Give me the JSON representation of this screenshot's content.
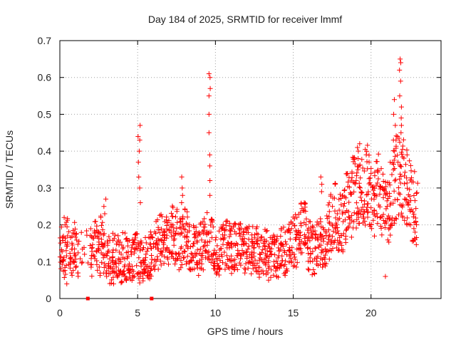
{
  "chart_data": {
    "type": "scatter",
    "title": "Day 184 of 2025, SRMTID for receiver lmmf",
    "xlabel": "GPS time / hours",
    "ylabel": "SRMTID / TECUs",
    "xlim": [
      0,
      24.5
    ],
    "ylim": [
      0,
      0.7
    ],
    "xticks": [
      0,
      5,
      10,
      15,
      20
    ],
    "xtick_labels": [
      "0",
      "5",
      "10",
      "15",
      "20"
    ],
    "yticks": [
      0,
      0.1,
      0.2,
      0.3,
      0.4,
      0.5,
      0.6,
      0.7
    ],
    "ytick_labels": [
      "0",
      "0.1",
      "0.2",
      "0.3",
      "0.4",
      "0.5",
      "0.6",
      "0.7"
    ],
    "grid": true,
    "marker": "+",
    "color": "#ff0000",
    "series": [
      {
        "name": "SRMTID",
        "x": [
          0.0,
          0.2,
          0.4,
          0.6,
          0.8,
          1.0,
          1.2,
          2.0,
          2.2,
          2.4,
          2.6,
          2.8,
          3.0,
          3.2,
          3.4,
          3.6,
          3.8,
          4.0,
          4.2,
          4.4,
          4.6,
          4.8,
          5.0,
          5.2,
          5.4,
          5.6,
          5.8,
          6.0,
          6.2,
          6.4,
          6.6,
          6.8,
          7.0,
          7.2,
          7.4,
          7.6,
          7.8,
          8.0,
          8.2,
          8.4,
          8.6,
          8.8,
          9.0,
          9.2,
          9.4,
          9.6,
          9.8,
          10.0,
          10.2,
          10.4,
          10.6,
          10.8,
          11.0,
          11.2,
          11.4,
          11.6,
          11.8,
          12.0,
          12.2,
          12.4,
          12.6,
          12.8,
          13.0,
          13.2,
          13.4,
          13.6,
          13.8,
          14.0,
          14.2,
          14.4,
          14.6,
          14.8,
          15.0,
          15.2,
          15.4,
          15.6,
          15.8,
          16.0,
          16.2,
          16.4,
          16.6,
          16.8,
          17.0,
          17.2,
          17.4,
          17.6,
          17.8,
          18.0,
          18.2,
          18.4,
          18.6,
          18.8,
          19.0,
          19.2,
          19.4,
          19.6,
          19.8,
          20.0,
          20.2,
          20.4,
          20.6,
          20.8,
          21.0,
          21.2,
          21.4,
          21.6,
          21.8,
          22.0,
          22.2,
          22.4,
          22.6,
          22.8
        ],
        "y": [
          0.13,
          0.12,
          0.15,
          0.11,
          0.14,
          0.12,
          0.13,
          0.11,
          0.14,
          0.12,
          0.16,
          0.13,
          0.11,
          0.1,
          0.12,
          0.11,
          0.1,
          0.12,
          0.11,
          0.1,
          0.11,
          0.12,
          0.1,
          0.11,
          0.12,
          0.11,
          0.12,
          0.14,
          0.15,
          0.16,
          0.15,
          0.17,
          0.16,
          0.18,
          0.17,
          0.15,
          0.16,
          0.17,
          0.15,
          0.14,
          0.13,
          0.12,
          0.14,
          0.15,
          0.16,
          0.15,
          0.14,
          0.12,
          0.13,
          0.14,
          0.15,
          0.14,
          0.13,
          0.14,
          0.15,
          0.14,
          0.13,
          0.14,
          0.13,
          0.12,
          0.13,
          0.12,
          0.13,
          0.12,
          0.11,
          0.13,
          0.12,
          0.11,
          0.13,
          0.12,
          0.14,
          0.15,
          0.16,
          0.17,
          0.19,
          0.18,
          0.15,
          0.14,
          0.13,
          0.14,
          0.15,
          0.14,
          0.16,
          0.18,
          0.21,
          0.23,
          0.22,
          0.2,
          0.24,
          0.26,
          0.25,
          0.28,
          0.27,
          0.3,
          0.29,
          0.31,
          0.3,
          0.28,
          0.27,
          0.29,
          0.26,
          0.24,
          0.25,
          0.27,
          0.3,
          0.33,
          0.35,
          0.32,
          0.3,
          0.28,
          0.25,
          0.23
        ],
        "extra_peaks": [
          {
            "x": 5.1,
            "values": [
              0.47,
              0.44,
              0.43,
              0.4,
              0.37,
              0.33,
              0.3,
              0.26
            ]
          },
          {
            "x": 9.6,
            "values": [
              0.61,
              0.6,
              0.57,
              0.55,
              0.5,
              0.45,
              0.39,
              0.36,
              0.32,
              0.28
            ]
          },
          {
            "x": 21.9,
            "values": [
              0.65,
              0.64,
              0.62,
              0.59,
              0.55,
              0.52,
              0.49,
              0.47,
              0.45
            ]
          },
          {
            "x": 21.5,
            "values": [
              0.54,
              0.5,
              0.47,
              0.43,
              0.4
            ]
          },
          {
            "x": 19.2,
            "values": [
              0.42,
              0.41,
              0.4,
              0.38,
              0.36
            ]
          },
          {
            "x": 7.9,
            "values": [
              0.33,
              0.3,
              0.28,
              0.26
            ]
          },
          {
            "x": 16.8,
            "values": [
              0.33,
              0.31,
              0.29
            ]
          },
          {
            "x": 2.9,
            "values": [
              0.27,
              0.25,
              0.23
            ]
          },
          {
            "x": 0.3,
            "values": [
              0.22,
              0.2
            ]
          },
          {
            "x": 20.9,
            "values": [
              0.06
            ]
          },
          {
            "x": 0.5,
            "values": [
              0.04
            ]
          },
          {
            "x": 3.5,
            "values": [
              0.04
            ]
          }
        ]
      }
    ],
    "zero_markers_x": [
      1.8,
      5.9
    ]
  }
}
